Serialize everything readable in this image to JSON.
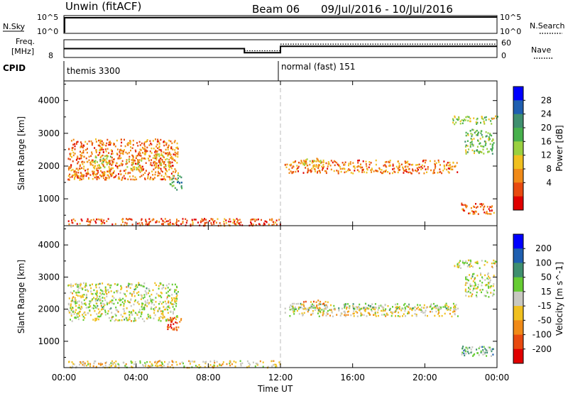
{
  "header": {
    "radar": "Unwin (fitACF)",
    "beam": "Beam 06",
    "dates": "09/Jul/2016 - 10/Jul/2016"
  },
  "strip_nsky": {
    "label": "N.Sky",
    "left_ticks": [
      "10^5",
      "10^0"
    ],
    "right_ticks": [
      "10^5",
      "10^0"
    ],
    "right_label": "N.Search"
  },
  "strip_freq": {
    "label_top": "Freq.",
    "label_bottom": "[MHz]",
    "left_tick": "8",
    "right_ticks": [
      "60",
      "0"
    ],
    "right_label": "Nave",
    "steps": [
      {
        "x0": 0,
        "x1": 10,
        "y": 11.0
      },
      {
        "x0": 10,
        "x1": 12,
        "y": 9.6
      },
      {
        "x0": 12,
        "x1": 24,
        "y": 11.8
      }
    ]
  },
  "cpid": {
    "label": "CPID",
    "segments": [
      {
        "start_hour": 0,
        "text": "themis 3300"
      },
      {
        "start_hour": 12,
        "text": "normal (fast) 151"
      }
    ]
  },
  "time_axis": {
    "ticks": [
      "00:00",
      "04:00",
      "08:00",
      "12:00",
      "16:00",
      "20:00",
      "00:00"
    ],
    "tick_hours": [
      0,
      4,
      8,
      12,
      16,
      20,
      24
    ],
    "label": "Time UT"
  },
  "colors": {
    "power_scale": [
      "#0000ff",
      "#1f5fb0",
      "#3f8f6f",
      "#47b04c",
      "#9ad040",
      "#f0c020",
      "#f08a18",
      "#e84a10",
      "#e00000"
    ],
    "velocity_scale": [
      "#0000ff",
      "#1f5fb0",
      "#3f8f6f",
      "#66cc33",
      "#c8c8c0",
      "#f0c020",
      "#f08a18",
      "#e84a10",
      "#e00000"
    ]
  },
  "chart_data": [
    {
      "type": "heatmap",
      "name": "power",
      "ylabel": "Slant Range [km]",
      "xlim": [
        0,
        24
      ],
      "ylim": [
        180,
        4600
      ],
      "yticks": [
        1000,
        2000,
        3000,
        4000
      ],
      "colorbar": {
        "label": "Power [dB]",
        "ticks": [
          "28",
          "24",
          "20",
          "16",
          "12",
          "8",
          "4"
        ],
        "range": [
          0,
          32
        ]
      },
      "regions": [
        {
          "t0": 0.2,
          "t1": 6.3,
          "r0": 1600,
          "r1": 2850,
          "v": 8
        },
        {
          "t0": 0.3,
          "t1": 3.0,
          "r0": 1650,
          "r1": 1900,
          "v": 8
        },
        {
          "t0": 1.6,
          "t1": 2.6,
          "r0": 1950,
          "r1": 2350,
          "v": 14
        },
        {
          "t0": 3.4,
          "t1": 4.3,
          "r0": 1900,
          "r1": 2250,
          "v": 14
        },
        {
          "t0": 5.0,
          "t1": 6.0,
          "r0": 2000,
          "r1": 2400,
          "v": 12
        },
        {
          "t0": 5.8,
          "t1": 6.5,
          "r0": 1300,
          "r1": 1750,
          "v": 20
        },
        {
          "t0": 0.2,
          "t1": 12.0,
          "r0": 200,
          "r1": 420,
          "v": 6
        },
        {
          "t0": 12.2,
          "t1": 21.8,
          "r0": 1800,
          "r1": 2200,
          "v": 8
        },
        {
          "t0": 13.0,
          "t1": 14.2,
          "r0": 2050,
          "r1": 2300,
          "v": 12
        },
        {
          "t0": 21.5,
          "t1": 24.0,
          "r0": 3300,
          "r1": 3550,
          "v": 16
        },
        {
          "t0": 22.2,
          "t1": 23.8,
          "r0": 2400,
          "r1": 3150,
          "v": 18
        },
        {
          "t0": 22.0,
          "t1": 23.8,
          "r0": 550,
          "r1": 900,
          "v": 6
        }
      ]
    },
    {
      "type": "heatmap",
      "name": "velocity",
      "ylabel": "Slant Range [km]",
      "xlim": [
        0,
        24
      ],
      "ylim": [
        180,
        4600
      ],
      "yticks": [
        1000,
        2000,
        3000,
        4000
      ],
      "colorbar": {
        "label": "Velocity [m s^-1]",
        "ticks": [
          "200",
          "100",
          "50",
          "15",
          "-15",
          "-50",
          "-100",
          "-200"
        ],
        "range": [
          -300,
          300
        ]
      },
      "regions": [
        {
          "t0": 0.2,
          "t1": 6.3,
          "r0": 1650,
          "r1": 2850,
          "v": 0
        },
        {
          "t0": 5.7,
          "t1": 6.5,
          "r0": 1350,
          "r1": 1800,
          "v": -180
        },
        {
          "t0": 0.2,
          "t1": 12.0,
          "r0": 200,
          "r1": 420,
          "v": -40
        },
        {
          "t0": 12.2,
          "t1": 21.8,
          "r0": 1800,
          "r1": 2100,
          "v": -40
        },
        {
          "t0": 12.5,
          "t1": 21.8,
          "r0": 2000,
          "r1": 2200,
          "v": 30
        },
        {
          "t0": 13.2,
          "t1": 14.6,
          "r0": 2100,
          "r1": 2300,
          "v": -80
        },
        {
          "t0": 21.5,
          "t1": 24.0,
          "r0": 3300,
          "r1": 3550,
          "v": 0
        },
        {
          "t0": 22.2,
          "t1": 23.8,
          "r0": 2400,
          "r1": 3150,
          "v": 0
        },
        {
          "t0": 22.0,
          "t1": 23.8,
          "r0": 550,
          "r1": 900,
          "v": 80
        }
      ]
    }
  ]
}
